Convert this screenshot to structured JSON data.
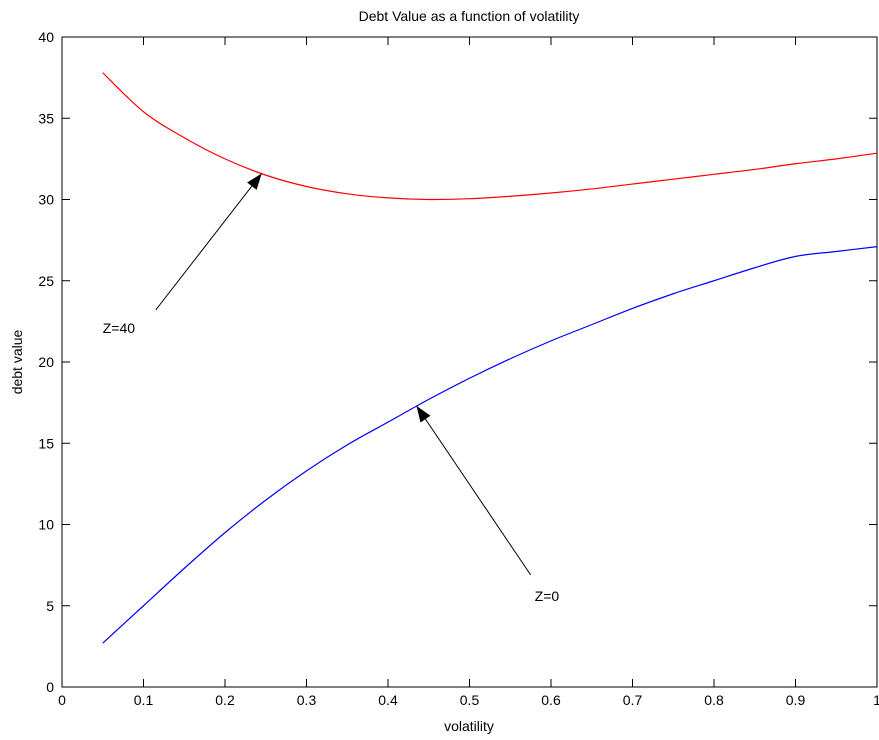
{
  "chart_data": {
    "type": "line",
    "title": "Debt Value as a function of volatility",
    "xlabel": "volatility",
    "ylabel": "debt value",
    "xlim": [
      0,
      1
    ],
    "ylim": [
      0,
      40
    ],
    "x_ticks": [
      0,
      0.1,
      0.2,
      0.3,
      0.4,
      0.5,
      0.6,
      0.7,
      0.8,
      0.9,
      1
    ],
    "x_tick_labels": [
      "0",
      "0.1",
      "0.2",
      "0.3",
      "0.4",
      "0.5",
      "0.6",
      "0.7",
      "0.8",
      "0.9",
      "1"
    ],
    "y_ticks": [
      0,
      5,
      10,
      15,
      20,
      25,
      30,
      35,
      40
    ],
    "y_tick_labels": [
      "0",
      "5",
      "10",
      "15",
      "20",
      "25",
      "30",
      "35",
      "40"
    ],
    "grid": false,
    "series": [
      {
        "name": "Z=40",
        "color": "#ff0000",
        "x": [
          0.05,
          0.1,
          0.15,
          0.2,
          0.25,
          0.3,
          0.35,
          0.4,
          0.45,
          0.5,
          0.55,
          0.6,
          0.65,
          0.7,
          0.75,
          0.8,
          0.85,
          0.9,
          0.95,
          1.0
        ],
        "y": [
          37.8,
          35.4,
          33.8,
          32.5,
          31.5,
          30.8,
          30.35,
          30.1,
          30.0,
          30.05,
          30.2,
          30.4,
          30.65,
          30.95,
          31.25,
          31.55,
          31.85,
          32.2,
          32.5,
          32.85
        ]
      },
      {
        "name": "Z=0",
        "color": "#0000ff",
        "x": [
          0.05,
          0.1,
          0.15,
          0.2,
          0.25,
          0.3,
          0.35,
          0.4,
          0.45,
          0.5,
          0.55,
          0.6,
          0.65,
          0.7,
          0.75,
          0.8,
          0.85,
          0.9,
          0.95,
          1.0
        ],
        "y": [
          2.7,
          5.0,
          7.3,
          9.5,
          11.5,
          13.3,
          14.9,
          16.3,
          17.7,
          19.0,
          20.2,
          21.3,
          22.3,
          23.3,
          24.2,
          25.0,
          25.8,
          26.5,
          26.8,
          27.1
        ]
      }
    ],
    "annotations": [
      {
        "text": "Z=40",
        "text_x": 0.05,
        "text_y": 22.1,
        "arrow_from": [
          0.115,
          23.2
        ],
        "arrow_to": [
          0.245,
          31.6
        ]
      },
      {
        "text": "Z=0",
        "text_x": 0.58,
        "text_y": 5.6,
        "arrow_from": [
          0.575,
          6.9
        ],
        "arrow_to": [
          0.435,
          17.3
        ]
      }
    ],
    "colors": {
      "axis": "#000000",
      "arrow": "#000000"
    }
  }
}
